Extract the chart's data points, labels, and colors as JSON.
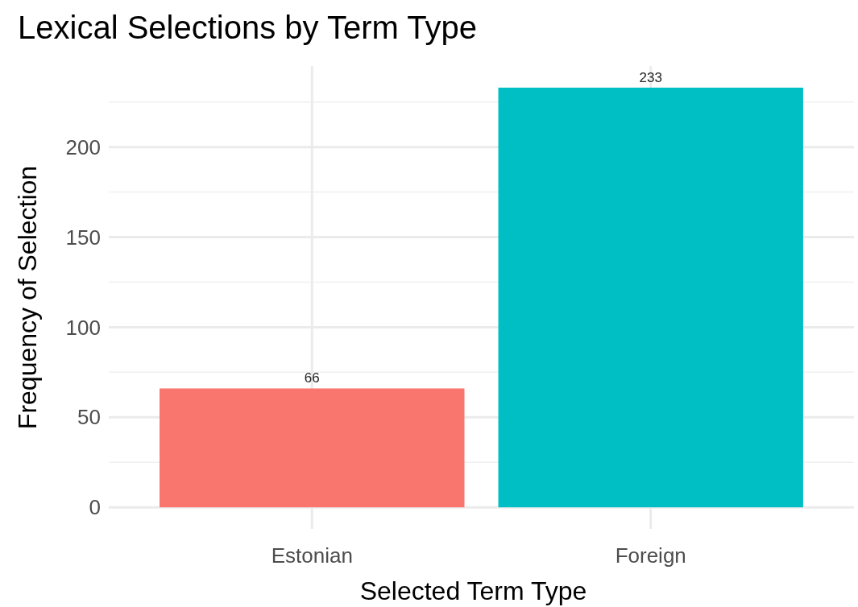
{
  "chart_data": {
    "type": "bar",
    "title": "Lexical Selections by Term Type",
    "xlabel": "Selected Term Type",
    "ylabel": "Frequency of Selection",
    "categories": [
      "Estonian",
      "Foreign"
    ],
    "values": [
      66,
      233
    ],
    "colors": [
      "#f8766d",
      "#00bfc4"
    ],
    "ylim": [
      -12,
      245
    ],
    "yticks": [
      0,
      50,
      100,
      150,
      200
    ],
    "grid": true,
    "data_labels": true
  }
}
